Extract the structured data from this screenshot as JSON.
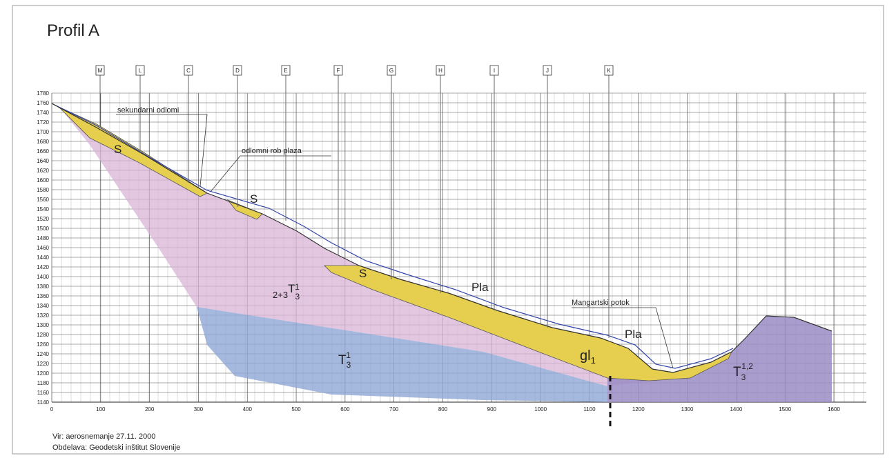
{
  "title": "Profil A",
  "sections": [
    "M",
    "L",
    "C",
    "D",
    "E",
    "F",
    "G",
    "H",
    "I",
    "J",
    "K"
  ],
  "axes": {
    "xticks": [
      0,
      100,
      200,
      300,
      400,
      500,
      600,
      700,
      800,
      900,
      1000,
      1100,
      1200,
      1300,
      1400,
      1500,
      1600
    ],
    "yticks": [
      1140,
      1160,
      1180,
      1200,
      1220,
      1240,
      1260,
      1280,
      1300,
      1320,
      1340,
      1360,
      1380,
      1400,
      1420,
      1440,
      1460,
      1480,
      1500,
      1520,
      1540,
      1560,
      1580,
      1600,
      1620,
      1640,
      1660,
      1680,
      1700,
      1720,
      1740,
      1760,
      1780
    ]
  },
  "labels": {
    "secondary_scarps": "sekundarni odlomi",
    "scarp_edge": "odlomni rob plaza",
    "s_upper": "S",
    "s_middle": "S",
    "s_lower": "S",
    "pla_upper": "Pla",
    "pla_lower": "Pla",
    "stream": "Mangartski potok",
    "gl": {
      "base": "gl",
      "sub": "1"
    },
    "t_upper": {
      "prefix": "2+3",
      "base": "T",
      "sub": "3",
      "sup": "1"
    },
    "t_lower": {
      "base": "T",
      "sub": "3",
      "sup": "1"
    },
    "t_right": {
      "base": "T",
      "sub": "3",
      "sup": "1,2"
    }
  },
  "source": "Vir: aerosnemanje 27.11. 2000",
  "credit": "Obdelava: Geodetski inštitut Slovenije"
}
